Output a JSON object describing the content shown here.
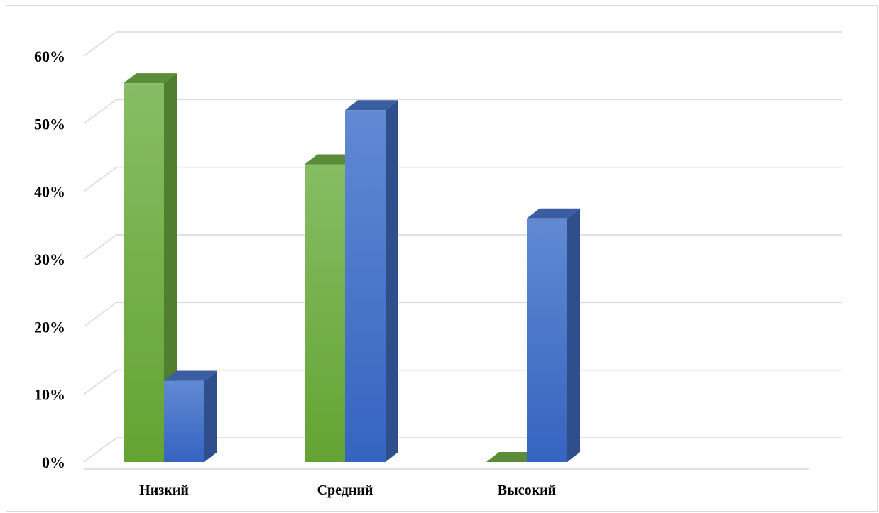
{
  "chart_data": {
    "type": "bar",
    "style": "3d-clustered-column",
    "categories": [
      "Низкий",
      "Средний",
      "Высокий"
    ],
    "series": [
      {
        "color": "#70ad47",
        "values": [
          56,
          44,
          0
        ]
      },
      {
        "color": "#4472c4",
        "values": [
          12,
          52,
          36
        ]
      }
    ],
    "y_ticks": [
      "0%",
      "10%",
      "20%",
      "30%",
      "40%",
      "50%",
      "60%"
    ],
    "ylim": [
      0,
      60
    ],
    "grid": true,
    "legend": "none"
  }
}
